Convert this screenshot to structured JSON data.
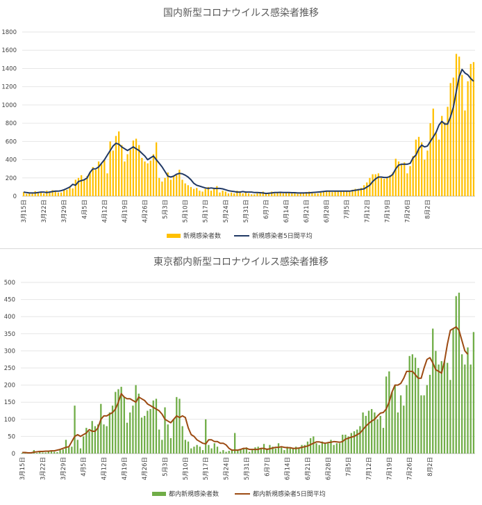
{
  "chart_data": [
    {
      "type": "bar",
      "title": "国内新型コロナウイルス感染者推移",
      "ylim": [
        0,
        1800
      ],
      "yticks": [
        0,
        200,
        400,
        600,
        800,
        1000,
        1200,
        1400,
        1600,
        1800
      ],
      "grid": true,
      "legend_position": "bottom",
      "x_start": "2020-03-15",
      "xticklabels": [
        "3月15日",
        "3月22日",
        "3月29日",
        "4月5日",
        "4月12日",
        "4月19日",
        "4月26日",
        "5月3日",
        "5月10日",
        "5月17日",
        "5月24日",
        "5月31日",
        "6月7日",
        "6月14日",
        "6月21日",
        "6月28日",
        "7月5日",
        "7月12日",
        "7月19日",
        "7月26日",
        "8月2日"
      ],
      "bar_color": "#ffc000",
      "line_color": "#203864",
      "series": [
        {
          "name": "新規感染者数",
          "type": "bar",
          "values": [
            45,
            25,
            40,
            28,
            55,
            40,
            50,
            30,
            60,
            45,
            65,
            50,
            40,
            40,
            65,
            70,
            95,
            85,
            180,
            200,
            230,
            180,
            220,
            260,
            320,
            290,
            380,
            350,
            400,
            250,
            600,
            500,
            660,
            710,
            560,
            380,
            460,
            510,
            610,
            630,
            560,
            420,
            380,
            360,
            390,
            460,
            590,
            200,
            160,
            200,
            260,
            180,
            220,
            230,
            290,
            180,
            140,
            120,
            100,
            80,
            90,
            60,
            50,
            80,
            100,
            60,
            90,
            110,
            40,
            60,
            50,
            30,
            40,
            30,
            60,
            50,
            30,
            40,
            30,
            20,
            20,
            30,
            40,
            50,
            30,
            40,
            50,
            30,
            40,
            35,
            30,
            40,
            35,
            30,
            30,
            25,
            30,
            40,
            45,
            50,
            35,
            30,
            30,
            40,
            55,
            60,
            50,
            45,
            50,
            55,
            50,
            50,
            60,
            60,
            70,
            80,
            80,
            90,
            120,
            150,
            200,
            240,
            240,
            250,
            200,
            190,
            200,
            230,
            260,
            410,
            380,
            350,
            370,
            250,
            330,
            440,
            620,
            650,
            590,
            400,
            500,
            800,
            960,
            690,
            620,
            880,
            810,
            980,
            1240,
            1300,
            1560,
            1530,
            1330,
            940,
            1260,
            1450,
            1470
          ],
          "smoothed_values": [
            45,
            40,
            35,
            35,
            35,
            40,
            45,
            45,
            40,
            45,
            50,
            55,
            55,
            60,
            70,
            85,
            100,
            130,
            120,
            160,
            170,
            180,
            200,
            260,
            300,
            300,
            320,
            360,
            400,
            450,
            500,
            550,
            580,
            570,
            540,
            520,
            500,
            520,
            540,
            520,
            500,
            470,
            440,
            400,
            420,
            440,
            400,
            360,
            320,
            270,
            220,
            210,
            220,
            240,
            250,
            245,
            230,
            210,
            180,
            140,
            120,
            110,
            100,
            90,
            85,
            90,
            85,
            85,
            85,
            80,
            70,
            60,
            55,
            50,
            45,
            45,
            50,
            45,
            45,
            45,
            40,
            40,
            38,
            35,
            30,
            32,
            35,
            40,
            40,
            42,
            40,
            40,
            40,
            38,
            38,
            35,
            35,
            35,
            36,
            36,
            40,
            42,
            45,
            48,
            52,
            55,
            55,
            55,
            55,
            55,
            55,
            55,
            55,
            55,
            60,
            65,
            70,
            75,
            80,
            100,
            120,
            160,
            190,
            210,
            210,
            205,
            205,
            215,
            240,
            300,
            340,
            350,
            350,
            350,
            360,
            420,
            450,
            520,
            560,
            540,
            550,
            600,
            650,
            700,
            780,
            820,
            790,
            790,
            870,
            980,
            1150,
            1310,
            1390,
            1350,
            1330,
            1290,
            1260
          ]
        },
        {
          "name": "新規感染者5日間平均",
          "type": "line"
        }
      ]
    },
    {
      "type": "bar",
      "title": "東京都内新型コロナウイルス感染者推移",
      "ylim": [
        0,
        500
      ],
      "yticks": [
        0,
        50,
        100,
        150,
        200,
        250,
        300,
        350,
        400,
        450,
        500
      ],
      "grid": true,
      "legend_position": "bottom",
      "x_start": "2020-03-15",
      "xticklabels": [
        "3月15日",
        "3月22日",
        "3月29日",
        "4月5日",
        "4月12日",
        "4月19日",
        "4月26日",
        "5月3日",
        "5月10日",
        "5月17日",
        "5月24日",
        "5月31日",
        "6月7日",
        "6月14日",
        "6月21日",
        "6月28日",
        "7月5日",
        "7月12日",
        "7月19日",
        "7月26日",
        "8月2日"
      ],
      "bar_color": "#70ad47",
      "line_color": "#9c4a12",
      "series": [
        {
          "name": "都内新規感染者数",
          "type": "bar",
          "values": [
            2,
            1,
            1,
            1,
            10,
            2,
            5,
            3,
            3,
            8,
            8,
            5,
            4,
            10,
            12,
            40,
            18,
            20,
            140,
            40,
            15,
            50,
            75,
            65,
            95,
            80,
            85,
            145,
            85,
            80,
            120,
            140,
            180,
            188,
            195,
            165,
            90,
            120,
            140,
            200,
            175,
            105,
            110,
            125,
            130,
            155,
            160,
            70,
            40,
            135,
            85,
            45,
            100,
            165,
            160,
            80,
            40,
            35,
            15,
            20,
            25,
            20,
            10,
            100,
            25,
            15,
            30,
            20,
            5,
            10,
            5,
            8,
            12,
            60,
            8,
            12,
            15,
            18,
            5,
            10,
            18,
            20,
            15,
            28,
            15,
            25,
            20,
            15,
            30,
            18,
            10,
            20,
            15,
            15,
            20,
            15,
            25,
            25,
            35,
            45,
            50,
            30,
            25,
            35,
            30,
            30,
            40,
            25,
            30,
            30,
            55,
            55,
            50,
            60,
            65,
            70,
            80,
            120,
            110,
            125,
            130,
            120,
            100,
            110,
            75,
            225,
            240,
            180,
            200,
            120,
            170,
            140,
            200,
            285,
            290,
            280,
            250,
            170,
            170,
            200,
            230,
            365,
            300,
            260,
            270,
            270,
            265,
            215,
            365,
            460,
            470,
            290,
            260,
            310,
            260,
            355
          ],
          "smoothed_values": [
            3,
            3,
            2,
            2,
            4,
            5,
            6,
            6,
            7,
            7,
            8,
            8,
            10,
            12,
            15,
            18,
            20,
            35,
            50,
            55,
            50,
            55,
            60,
            70,
            65,
            65,
            75,
            100,
            110,
            110,
            115,
            120,
            130,
            150,
            175,
            165,
            160,
            160,
            155,
            150,
            165,
            160,
            155,
            145,
            140,
            135,
            130,
            125,
            115,
            100,
            95,
            90,
            100,
            110,
            105,
            110,
            105,
            75,
            55,
            50,
            40,
            35,
            30,
            28,
            40,
            40,
            35,
            35,
            30,
            30,
            25,
            15,
            10,
            10,
            10,
            12,
            15,
            15,
            12,
            12,
            12,
            12,
            15,
            15,
            12,
            14,
            16,
            18,
            18,
            20,
            18,
            17,
            17,
            15,
            15,
            16,
            18,
            20,
            22,
            26,
            30,
            34,
            34,
            32,
            30,
            32,
            33,
            35,
            34,
            33,
            35,
            42,
            45,
            48,
            50,
            55,
            60,
            70,
            80,
            88,
            95,
            100,
            110,
            118,
            120,
            130,
            150,
            180,
            200,
            200,
            205,
            220,
            240,
            240,
            240,
            230,
            220,
            220,
            250,
            275,
            280,
            265,
            245,
            240,
            235,
            270,
            320,
            360,
            365,
            370,
            360,
            330,
            300,
            290
          ]
        },
        {
          "name": "都内新規感染者5日間平均",
          "type": "line"
        }
      ]
    }
  ]
}
